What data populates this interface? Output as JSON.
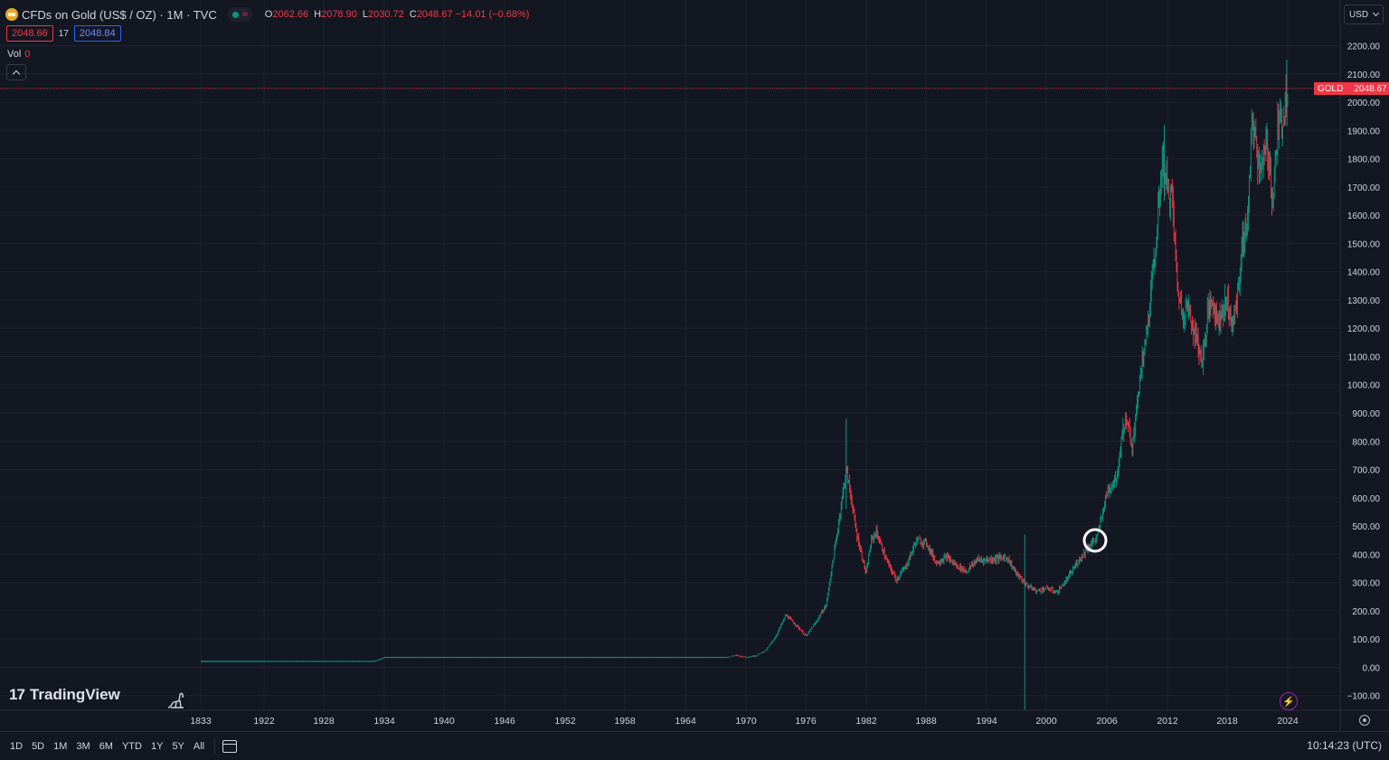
{
  "header": {
    "title": "CFDs on Gold (US$ / OZ) · 1M · TVC",
    "market_status_icon": "wave-icon",
    "ohlc": [
      {
        "k": "O",
        "v": "2062.66"
      },
      {
        "k": "H",
        "v": "2078.90"
      },
      {
        "k": "L",
        "v": "2030.72"
      },
      {
        "k": "C",
        "v": "2048.67 −14.01 (−0.68%)"
      }
    ],
    "bid": "2048.66",
    "spread": "17",
    "ask": "2048.84",
    "vol_label": "Vol",
    "vol_value": "0"
  },
  "currency": "USD",
  "price_tag": {
    "symbol": "GOLD",
    "value": "2048.67"
  },
  "logo_text": "TradingView",
  "ranges": [
    "1D",
    "5D",
    "1M",
    "3M",
    "6M",
    "YTD",
    "1Y",
    "5Y",
    "All"
  ],
  "clock": "10:14:23 (UTC)",
  "colors": {
    "up": "#089981",
    "down": "#f23645",
    "bg": "#131722",
    "grid": "#1e222d"
  },
  "chart_data": {
    "type": "candlestick",
    "y_ticks": [
      "2200.00",
      "2100.00",
      "2000.00",
      "1900.00",
      "1800.00",
      "1700.00",
      "1600.00",
      "1500.00",
      "1400.00",
      "1300.00",
      "1200.00",
      "1100.00",
      "1000.00",
      "900.00",
      "800.00",
      "700.00",
      "600.00",
      "500.00",
      "400.00",
      "300.00",
      "200.00",
      "100.00",
      "0.00",
      "−100.00"
    ],
    "x_ticks": [
      "1833",
      "1922",
      "1928",
      "1934",
      "1940",
      "1946",
      "1952",
      "1958",
      "1964",
      "1970",
      "1976",
      "1982",
      "1988",
      "1994",
      "2000",
      "2006",
      "2012",
      "2018",
      "2024"
    ],
    "ylim": [
      -120,
      2230
    ],
    "last_price": 2048.67,
    "price_path": [
      [
        1922,
        21
      ],
      [
        1933,
        21
      ],
      [
        1934,
        35
      ],
      [
        1968,
        35
      ],
      [
        1969,
        42
      ],
      [
        1970,
        36
      ],
      [
        1971,
        41
      ],
      [
        1972,
        60
      ],
      [
        1973,
        110
      ],
      [
        1974,
        185
      ],
      [
        1975,
        150
      ],
      [
        1976,
        110
      ],
      [
        1977,
        160
      ],
      [
        1978,
        220
      ],
      [
        1979,
        450
      ],
      [
        1980,
        700
      ],
      [
        1980.5,
        600
      ],
      [
        1981,
        480
      ],
      [
        1982,
        330
      ],
      [
        1982.5,
        450
      ],
      [
        1983,
        480
      ],
      [
        1984,
        380
      ],
      [
        1985,
        310
      ],
      [
        1986,
        360
      ],
      [
        1987,
        450
      ],
      [
        1988,
        440
      ],
      [
        1989,
        370
      ],
      [
        1990,
        390
      ],
      [
        1991,
        360
      ],
      [
        1992,
        340
      ],
      [
        1993,
        380
      ],
      [
        1994,
        380
      ],
      [
        1995,
        385
      ],
      [
        1996,
        390
      ],
      [
        1997,
        330
      ],
      [
        1998,
        290
      ],
      [
        1999,
        270
      ],
      [
        2000,
        280
      ],
      [
        2001,
        265
      ],
      [
        2002,
        310
      ],
      [
        2003,
        370
      ],
      [
        2004,
        420
      ],
      [
        2005,
        460
      ],
      [
        2006,
        620
      ],
      [
        2007,
        680
      ],
      [
        2007.5,
        830
      ],
      [
        2008,
        880
      ],
      [
        2008.5,
        760
      ],
      [
        2009,
        950
      ],
      [
        2010,
        1200
      ],
      [
        2011,
        1550
      ],
      [
        2011.5,
        1800
      ],
      [
        2012,
        1700
      ],
      [
        2012.5,
        1650
      ],
      [
        2013,
        1350
      ],
      [
        2013.5,
        1250
      ],
      [
        2014,
        1280
      ],
      [
        2015,
        1150
      ],
      [
        2015.5,
        1080
      ],
      [
        2016,
        1250
      ],
      [
        2016.5,
        1300
      ],
      [
        2017,
        1230
      ],
      [
        2018,
        1300
      ],
      [
        2018.5,
        1200
      ],
      [
        2019,
        1320
      ],
      [
        2019.5,
        1500
      ],
      [
        2020,
        1580
      ],
      [
        2020.5,
        1950
      ],
      [
        2021,
        1800
      ],
      [
        2021.5,
        1780
      ],
      [
        2022,
        1850
      ],
      [
        2022.5,
        1650
      ],
      [
        2023,
        1900
      ],
      [
        2023.5,
        1950
      ],
      [
        2024,
        2048.67
      ]
    ]
  }
}
